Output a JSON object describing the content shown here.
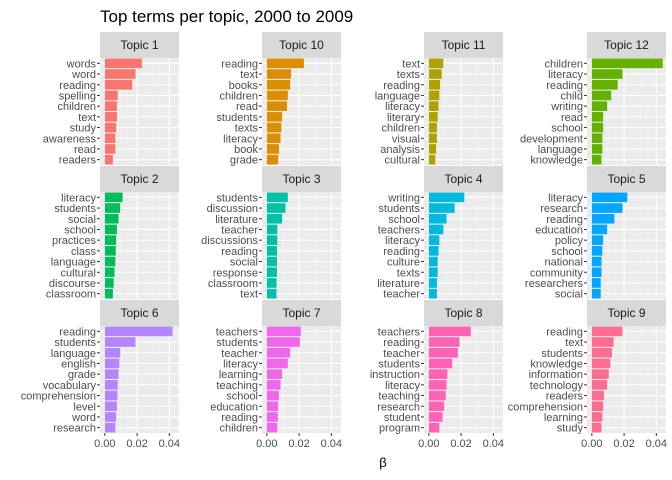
{
  "chart_data": {
    "type": "bar",
    "orientation": "horizontal",
    "facet_layout": "3 rows x 4 columns, shared x axis",
    "title": "Top terms per topic, 2000 to 2009",
    "xlabel": "β",
    "ylabel": "",
    "xlim": [
      -0.003,
      0.046
    ],
    "xticks": [
      "0.00",
      "0.02",
      "0.04"
    ],
    "xtick_values": [
      0,
      0.02,
      0.04
    ],
    "grid": true,
    "legend": "none",
    "panels": [
      {
        "name": "Topic 1",
        "color": "#F8766D",
        "terms": [
          "words",
          "word",
          "reading",
          "spelling",
          "children",
          "text",
          "study",
          "awareness",
          "read",
          "readers"
        ],
        "values": [
          0.023,
          0.019,
          0.017,
          0.008,
          0.0075,
          0.0075,
          0.007,
          0.0065,
          0.0065,
          0.005
        ]
      },
      {
        "name": "Topic 10",
        "color": "#DB8E00",
        "terms": [
          "reading",
          "text",
          "books",
          "children",
          "read",
          "students",
          "texts",
          "literacy",
          "book",
          "grade"
        ],
        "values": [
          0.023,
          0.015,
          0.0145,
          0.013,
          0.0125,
          0.0095,
          0.009,
          0.0085,
          0.0075,
          0.007
        ]
      },
      {
        "name": "Topic 11",
        "color": "#AEA200",
        "terms": [
          "text",
          "texts",
          "reading",
          "language",
          "literacy",
          "literary",
          "children",
          "visual",
          "analysis",
          "cultural"
        ],
        "values": [
          0.009,
          0.008,
          0.007,
          0.0065,
          0.006,
          0.0055,
          0.005,
          0.005,
          0.0045,
          0.004
        ]
      },
      {
        "name": "Topic 12",
        "color": "#64B200",
        "terms": [
          "children",
          "literacy",
          "reading",
          "child",
          "writing",
          "read",
          "school",
          "development",
          "language",
          "knowledge"
        ],
        "values": [
          0.044,
          0.019,
          0.016,
          0.012,
          0.0095,
          0.007,
          0.007,
          0.0065,
          0.0065,
          0.006
        ]
      },
      {
        "name": "Topic 2",
        "color": "#00BD5C",
        "terms": [
          "literacy",
          "students",
          "social",
          "school",
          "practices",
          "class",
          "language",
          "cultural",
          "discourse",
          "classroom"
        ],
        "values": [
          0.011,
          0.0095,
          0.0085,
          0.0075,
          0.007,
          0.0068,
          0.0065,
          0.006,
          0.0055,
          0.005
        ]
      },
      {
        "name": "Topic 3",
        "color": "#00C1A7",
        "terms": [
          "students",
          "discussion",
          "literature",
          "teacher",
          "discussions",
          "reading",
          "social",
          "response",
          "classroom",
          "text"
        ],
        "values": [
          0.013,
          0.0115,
          0.0095,
          0.0065,
          0.0065,
          0.0063,
          0.0063,
          0.0063,
          0.006,
          0.006
        ]
      },
      {
        "name": "Topic 4",
        "color": "#00BADE",
        "terms": [
          "writing",
          "students",
          "school",
          "teachers",
          "literacy",
          "reading",
          "culture",
          "texts",
          "literature",
          "teacher"
        ],
        "values": [
          0.022,
          0.016,
          0.011,
          0.009,
          0.0065,
          0.006,
          0.0055,
          0.0055,
          0.005,
          0.005
        ]
      },
      {
        "name": "Topic 5",
        "color": "#00A6FF",
        "terms": [
          "literacy",
          "research",
          "reading",
          "education",
          "policy",
          "school",
          "national",
          "community",
          "researchers",
          "social"
        ],
        "values": [
          0.022,
          0.019,
          0.014,
          0.0095,
          0.007,
          0.0065,
          0.006,
          0.006,
          0.0055,
          0.0055
        ]
      },
      {
        "name": "Topic 6",
        "color": "#B385FF",
        "terms": [
          "reading",
          "students",
          "language",
          "english",
          "grade",
          "vocabulary",
          "comprehension",
          "level",
          "word",
          "research"
        ],
        "values": [
          0.042,
          0.019,
          0.0095,
          0.009,
          0.0085,
          0.008,
          0.0078,
          0.0075,
          0.007,
          0.0065
        ]
      },
      {
        "name": "Topic 7",
        "color": "#EF67EB",
        "terms": [
          "teachers",
          "students",
          "teacher",
          "literacy",
          "learning",
          "teaching",
          "school",
          "education",
          "reading",
          "children"
        ],
        "values": [
          0.021,
          0.0205,
          0.0145,
          0.013,
          0.0095,
          0.0085,
          0.0075,
          0.007,
          0.0068,
          0.0065
        ]
      },
      {
        "name": "Topic 8",
        "color": "#FF63B6",
        "terms": [
          "teachers",
          "reading",
          "teacher",
          "students",
          "instruction",
          "literacy",
          "teaching",
          "research",
          "student",
          "program"
        ],
        "values": [
          0.026,
          0.019,
          0.018,
          0.0145,
          0.0115,
          0.011,
          0.0105,
          0.0095,
          0.0085,
          0.0065
        ]
      },
      {
        "name": "Topic 9",
        "color": "#FF6C91",
        "terms": [
          "reading",
          "text",
          "students",
          "knowledge",
          "information",
          "technology",
          "readers",
          "comprehension",
          "learning",
          "study"
        ],
        "values": [
          0.019,
          0.0135,
          0.0125,
          0.0115,
          0.0105,
          0.0095,
          0.0075,
          0.007,
          0.0065,
          0.006
        ]
      }
    ]
  }
}
